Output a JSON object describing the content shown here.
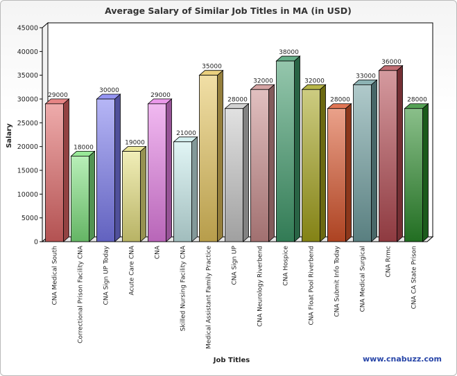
{
  "chart_data": {
    "type": "bar",
    "title": "Average Salary of Similar Job Titles in MA (in USD)",
    "xlabel": "Job Titles",
    "ylabel": "Salary",
    "ylim": [
      0,
      45000
    ],
    "yticks": [
      0,
      5000,
      10000,
      15000,
      20000,
      25000,
      30000,
      35000,
      40000,
      45000
    ],
    "grid": false,
    "legend": "none",
    "categories": [
      "CNA Medical South",
      "Correctional Prison Facility CNA",
      "CNA Sign UP Today",
      "Acute Care CNA",
      "CNA",
      "Skilled Nursing Facility CNA",
      "Medical Assistant Family Practice",
      "CNA Sign UP",
      "CNA Neurology Riverbend",
      "CNA Hospice",
      "CNA Float Pool Riverbend",
      "CNA Submit Info Today",
      "CNA Medical Surgical",
      "CNA Rrmc",
      "CNA CA State Prison"
    ],
    "values": [
      29000,
      18000,
      30000,
      19000,
      29000,
      21000,
      35000,
      28000,
      32000,
      38000,
      32000,
      28000,
      33000,
      36000,
      28000
    ],
    "bar_colors": [
      "#e06666",
      "#7ee27e",
      "#7b7bef",
      "#e6e07e",
      "#e680e6",
      "#c9ecec",
      "#e5c45e",
      "#c8c8c8",
      "#c98c8c",
      "#3f9a6a",
      "#a4a21a",
      "#d8542a",
      "#6f9fa0",
      "#b24850",
      "#2a8a2a"
    ]
  },
  "watermark": "www.cnabuzz.com"
}
